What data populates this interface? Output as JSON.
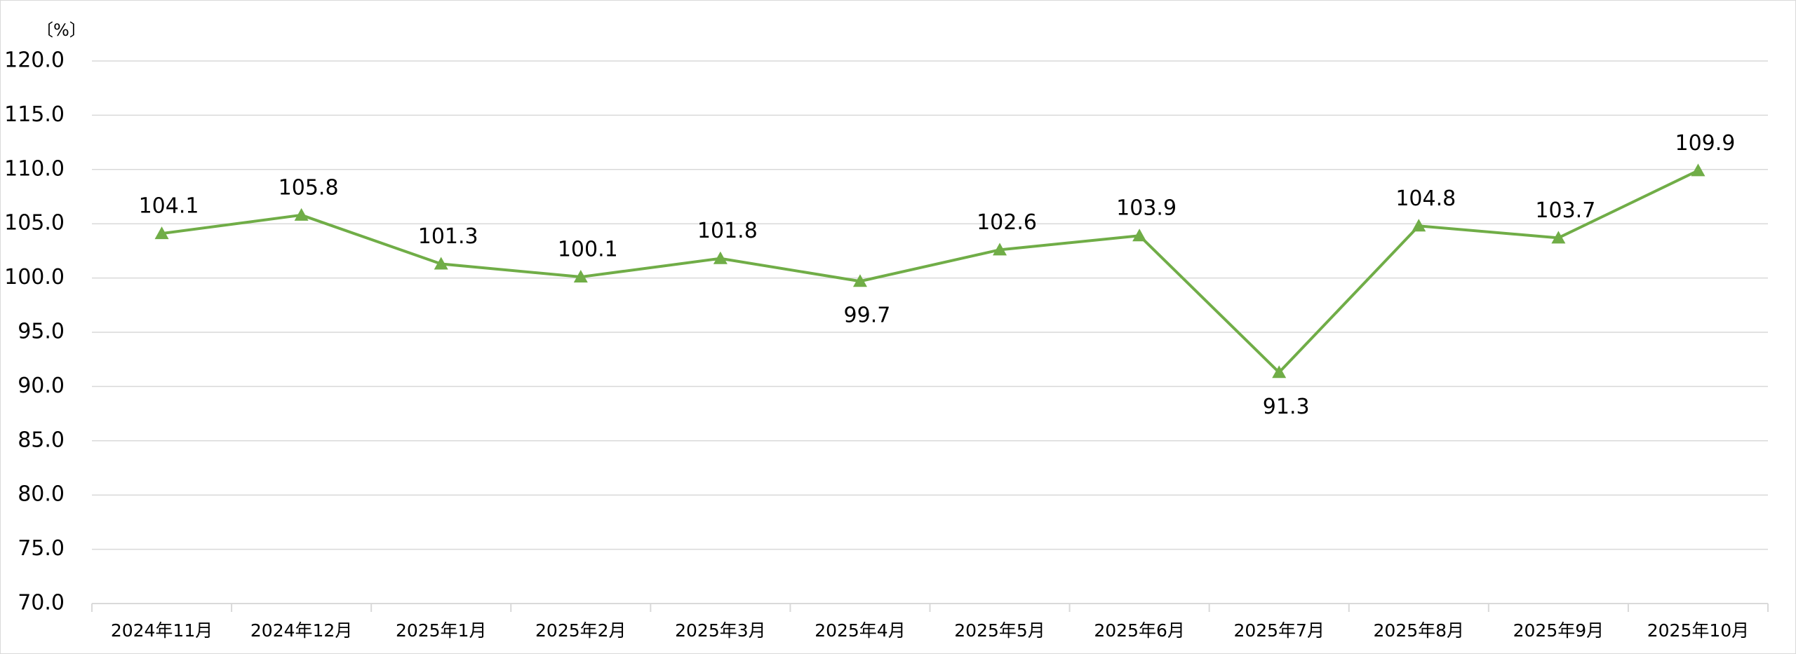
{
  "chart_data": {
    "type": "line",
    "y_unit": "〔%〕",
    "categories": [
      "2024年11月",
      "2024年12月",
      "2025年1月",
      "2025年2月",
      "2025年3月",
      "2025年4月",
      "2025年5月",
      "2025年6月",
      "2025年7月",
      "2025年8月",
      "2025年9月",
      "2025年10月"
    ],
    "series": [
      {
        "color": "#70ad47",
        "marker": "triangle",
        "values": [
          104.1,
          105.8,
          101.3,
          100.1,
          101.8,
          99.7,
          102.6,
          103.9,
          91.3,
          104.8,
          103.7,
          109.9
        ]
      }
    ],
    "ylim": [
      70,
      120
    ],
    "yticks": [
      {
        "value": 70,
        "label": "70.0"
      },
      {
        "value": 75,
        "label": "75.0"
      },
      {
        "value": 80,
        "label": "80.0"
      },
      {
        "value": 85,
        "label": "85.0"
      },
      {
        "value": 90,
        "label": "90.0"
      },
      {
        "value": 95,
        "label": "95.0"
      },
      {
        "value": 100,
        "label": "100.0"
      },
      {
        "value": 105,
        "label": "105.0"
      },
      {
        "value": 110,
        "label": "110.0"
      },
      {
        "value": 115,
        "label": "115.0"
      },
      {
        "value": 120,
        "label": "120.0"
      }
    ],
    "grid": true
  }
}
